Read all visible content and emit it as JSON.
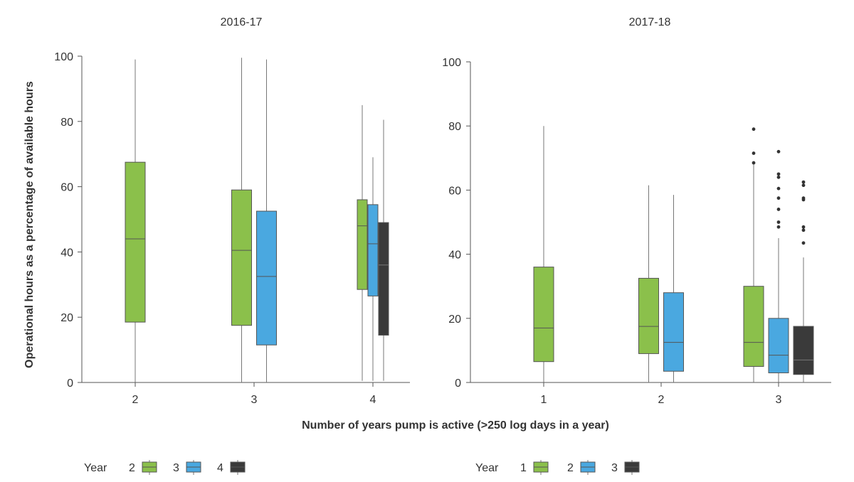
{
  "chart_data": {
    "type": "box",
    "ylabel": "Operational hours as a percentage of available hours",
    "xlabel": "Number of years pump is active (>250 log days in a year)",
    "ylim": [
      0,
      100
    ],
    "yticks": [
      "0",
      "20",
      "40",
      "60",
      "80",
      "100"
    ],
    "panels": [
      {
        "title": "2016-17",
        "legend_label": "Year",
        "categories": [
          "2",
          "3",
          "4"
        ],
        "series": [
          {
            "name": "2",
            "color": "#8bc04b"
          },
          {
            "name": "3",
            "color": "#4aa8e0"
          },
          {
            "name": "4",
            "color": "#3a3a3a"
          }
        ],
        "boxes": [
          {
            "category": "2",
            "series": "2",
            "whisker_low": 0,
            "q1": 18.5,
            "median": 44,
            "q3": 67.5,
            "whisker_high": 99,
            "outliers": []
          },
          {
            "category": "3",
            "series": "2",
            "whisker_low": 0,
            "q1": 17.5,
            "median": 40.5,
            "q3": 59,
            "whisker_high": 99.5,
            "outliers": []
          },
          {
            "category": "3",
            "series": "3",
            "whisker_low": 0,
            "q1": 11.5,
            "median": 32.5,
            "q3": 52.5,
            "whisker_high": 99,
            "outliers": []
          },
          {
            "category": "4",
            "series": "2",
            "whisker_low": 0.5,
            "q1": 28.5,
            "median": 48,
            "q3": 56,
            "whisker_high": 85,
            "outliers": []
          },
          {
            "category": "4",
            "series": "3",
            "whisker_low": 0.5,
            "q1": 26.5,
            "median": 42.5,
            "q3": 54.5,
            "whisker_high": 69,
            "outliers": []
          },
          {
            "category": "4",
            "series": "4",
            "whisker_low": 0.5,
            "q1": 14.5,
            "median": 36,
            "q3": 49,
            "whisker_high": 80.5,
            "outliers": []
          }
        ]
      },
      {
        "title": "2017-18",
        "legend_label": "Year",
        "categories": [
          "1",
          "2",
          "3"
        ],
        "series": [
          {
            "name": "1",
            "color": "#8bc04b"
          },
          {
            "name": "2",
            "color": "#4aa8e0"
          },
          {
            "name": "3",
            "color": "#3a3a3a"
          }
        ],
        "boxes": [
          {
            "category": "1",
            "series": "1",
            "whisker_low": 0,
            "q1": 6.5,
            "median": 17,
            "q3": 36,
            "whisker_high": 80,
            "outliers": []
          },
          {
            "category": "2",
            "series": "1",
            "whisker_low": 0,
            "q1": 9,
            "median": 17.5,
            "q3": 32.5,
            "whisker_high": 61.5,
            "outliers": []
          },
          {
            "category": "2",
            "series": "2",
            "whisker_low": 0,
            "q1": 3.5,
            "median": 12.5,
            "q3": 28,
            "whisker_high": 58.5,
            "outliers": []
          },
          {
            "category": "3",
            "series": "1",
            "whisker_low": 0,
            "q1": 5,
            "median": 12.5,
            "q3": 30,
            "whisker_high": 68,
            "outliers": [
              68.5,
              71.5,
              79
            ]
          },
          {
            "category": "3",
            "series": "2",
            "whisker_low": 0,
            "q1": 3,
            "median": 8.5,
            "q3": 20,
            "whisker_high": 45,
            "outliers": [
              48.5,
              50,
              54,
              57.5,
              60.5,
              64,
              65,
              72
            ]
          },
          {
            "category": "3",
            "series": "3",
            "whisker_low": 0,
            "q1": 2.5,
            "median": 7,
            "q3": 17.5,
            "whisker_high": 39,
            "outliers": [
              43.5,
              47.5,
              48.5,
              57,
              57.5,
              61.5,
              62.5
            ]
          }
        ]
      }
    ]
  }
}
